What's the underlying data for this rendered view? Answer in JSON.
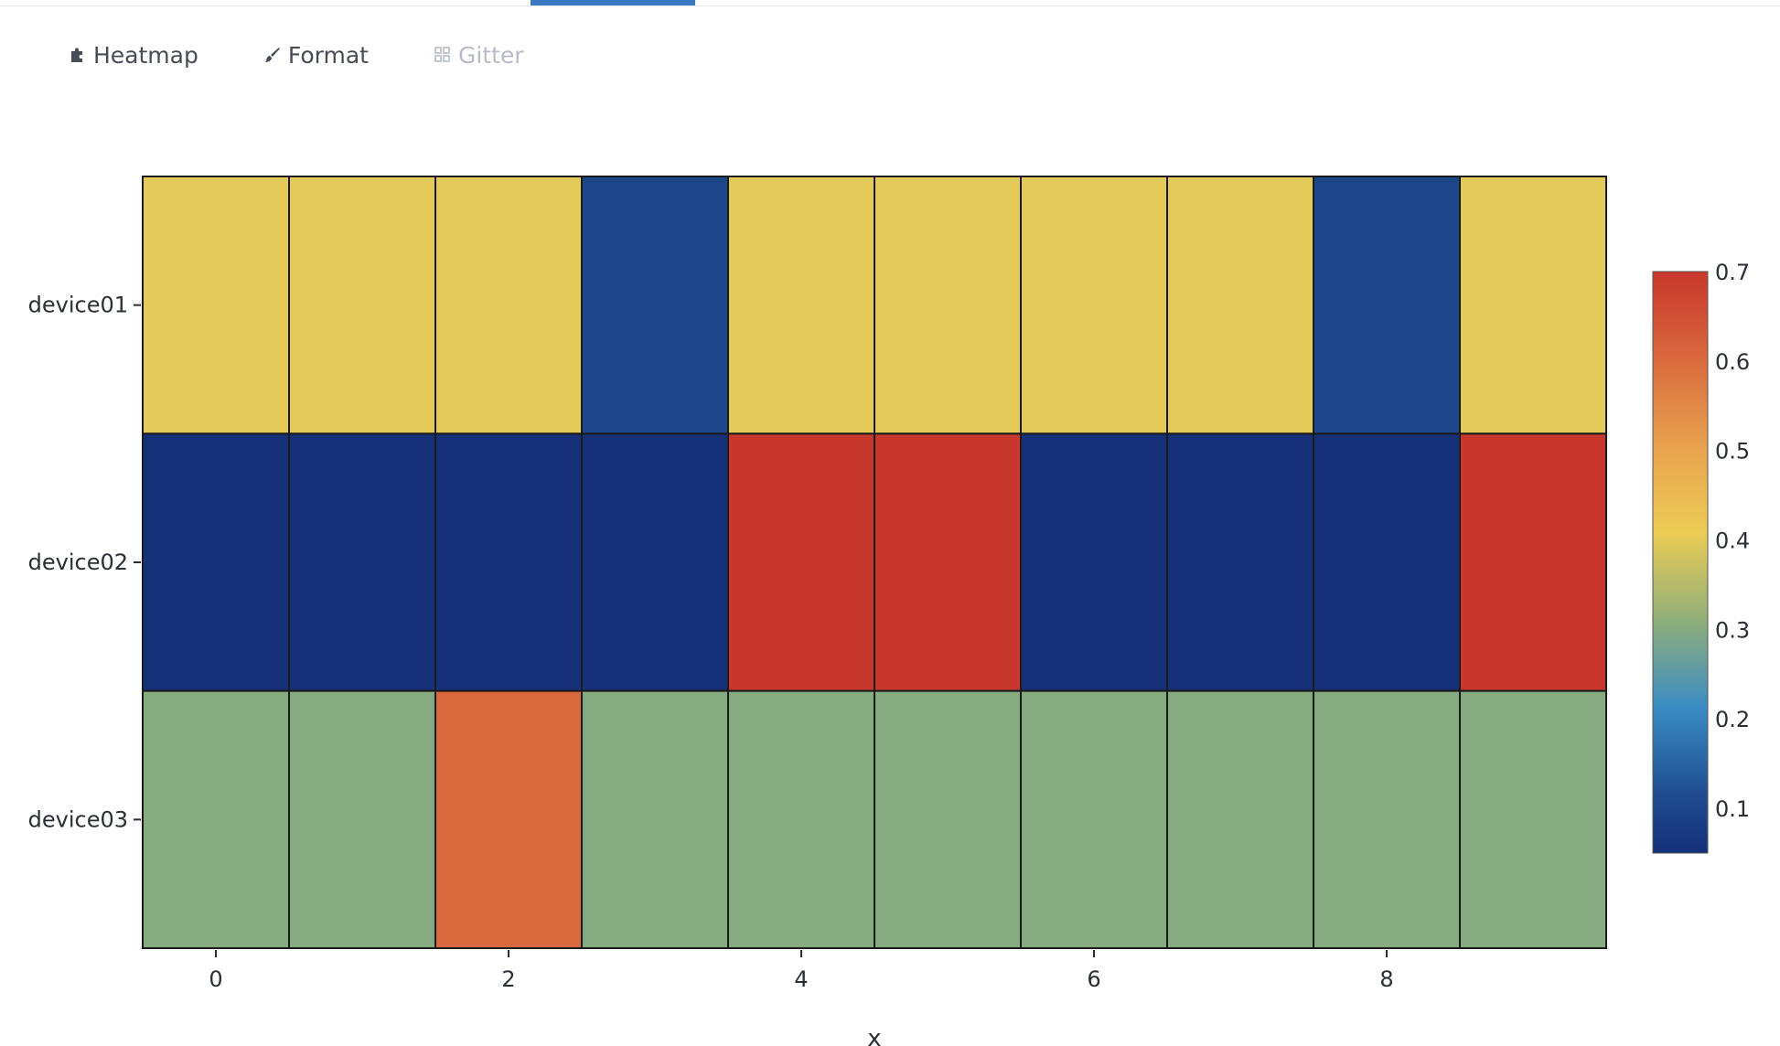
{
  "toolbar": {
    "items": [
      {
        "label": "Heatmap",
        "icon": "puzzle-icon",
        "enabled": true
      },
      {
        "label": "Format",
        "icon": "brush-icon",
        "enabled": true
      },
      {
        "label": "Gitter",
        "icon": "grid-icon",
        "enabled": false
      }
    ]
  },
  "chart_data": {
    "type": "heatmap",
    "title": "",
    "xlabel": "x",
    "ylabel": "",
    "x": [
      0,
      1,
      2,
      3,
      4,
      5,
      6,
      7,
      8,
      9
    ],
    "y": [
      "device01",
      "device02",
      "device03"
    ],
    "z": [
      [
        0.4,
        0.4,
        0.4,
        0.1,
        0.4,
        0.4,
        0.4,
        0.4,
        0.1,
        0.4
      ],
      [
        0.05,
        0.05,
        0.05,
        0.05,
        0.7,
        0.7,
        0.05,
        0.05,
        0.05,
        0.7
      ],
      [
        0.3,
        0.3,
        0.6,
        0.3,
        0.3,
        0.3,
        0.3,
        0.3,
        0.3,
        0.3
      ]
    ],
    "x_ticks": [
      0,
      2,
      4,
      6,
      8
    ],
    "zrange": [
      0.05,
      0.7
    ],
    "colorbar_ticks": [
      0.1,
      0.2,
      0.3,
      0.4,
      0.5,
      0.6,
      0.7
    ],
    "colorscale": [
      [
        0.0,
        "#16307a"
      ],
      [
        0.1,
        "#1f4c8f"
      ],
      [
        0.25,
        "#3a8cc4"
      ],
      [
        0.4,
        "#8fae79"
      ],
      [
        0.55,
        "#ebcc55"
      ],
      [
        0.7,
        "#e8a24e"
      ],
      [
        0.85,
        "#d9693e"
      ],
      [
        1.0,
        "#c8372c"
      ]
    ],
    "grid": true,
    "legend": "colorbar-right"
  }
}
